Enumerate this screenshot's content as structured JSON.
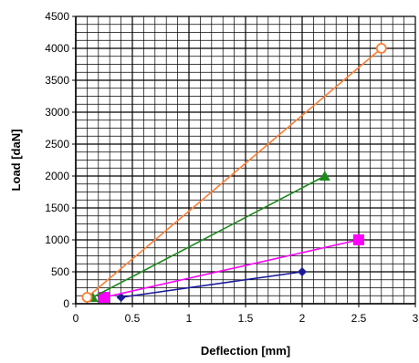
{
  "chart_data": {
    "type": "line",
    "xlabel": "Deflection [mm]",
    "ylabel": "Load [daN]",
    "xlim": [
      0,
      3
    ],
    "ylim": [
      0,
      4500
    ],
    "xticks": [
      0,
      0.5,
      1,
      1.5,
      2,
      2.5,
      3
    ],
    "xtick_labels": [
      "0",
      "0.5",
      "1",
      "1.5",
      "2",
      "2.5",
      "3"
    ],
    "yticks": [
      0,
      500,
      1000,
      1500,
      2000,
      2500,
      3000,
      3500,
      4000,
      4500
    ],
    "ytick_labels": [
      "0",
      "500",
      "1000",
      "1500",
      "2000",
      "2500",
      "3000",
      "3500",
      "4000",
      "4500"
    ],
    "grid": true,
    "legend": "none",
    "series": [
      {
        "x": [
          0.4,
          2.0
        ],
        "y": [
          100,
          500
        ],
        "color": "#1a1a99",
        "marker": "diamond"
      },
      {
        "x": [
          0.25,
          2.5
        ],
        "y": [
          100,
          1000
        ],
        "color": "#ff00ff",
        "marker": "square"
      },
      {
        "x": [
          0.15,
          2.2
        ],
        "y": [
          100,
          2000
        ],
        "color": "#1e8a1e",
        "marker": "triangle"
      },
      {
        "x": [
          0.1,
          2.7
        ],
        "y": [
          100,
          4000
        ],
        "color": "#ff7f33",
        "marker": "circle"
      }
    ]
  }
}
